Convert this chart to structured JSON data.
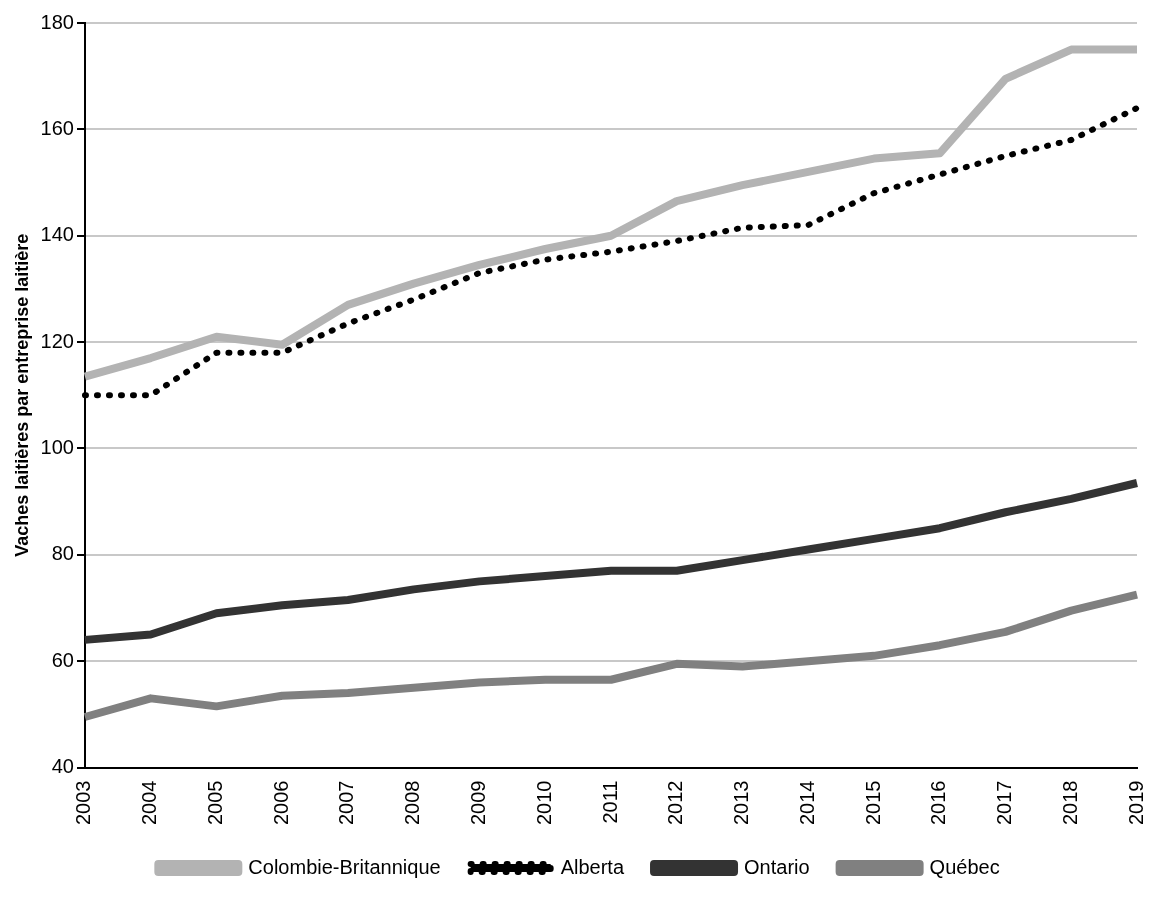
{
  "chart_data": {
    "type": "line",
    "ylabel": "Vaches laitières par entreprise laitière",
    "categories": [
      "2003",
      "2004",
      "2005",
      "2006",
      "2007",
      "2008",
      "2009",
      "2010",
      "2011",
      "2012",
      "2013",
      "2014",
      "2015",
      "2016",
      "2017",
      "2018",
      "2019"
    ],
    "series": [
      {
        "name": "Colombie-Britannique",
        "color": "#b3b3b3",
        "line_style": "solid",
        "values": [
          113.5,
          117,
          121,
          119.5,
          127,
          131,
          134.5,
          137.5,
          140,
          146.5,
          149.5,
          152,
          154.5,
          155.5,
          169.5,
          175,
          175
        ]
      },
      {
        "name": "Alberta",
        "color": "#000000",
        "line_style": "dotted",
        "values": [
          110,
          110,
          118,
          118,
          123.5,
          128,
          133,
          135.5,
          137,
          139,
          141.5,
          142,
          148,
          151.5,
          155,
          158,
          164
        ]
      },
      {
        "name": "Ontario",
        "color": "#333333",
        "line_style": "solid",
        "values": [
          64,
          65,
          69,
          70.5,
          71.5,
          73.5,
          75,
          76,
          77,
          77,
          79,
          81,
          83,
          85,
          88,
          90.5,
          93.5
        ]
      },
      {
        "name": "Québec",
        "color": "#808080",
        "line_style": "solid",
        "values": [
          49.5,
          53,
          51.5,
          53.5,
          54,
          55,
          56,
          56.5,
          56.5,
          59.5,
          59,
          60,
          61,
          63,
          65.5,
          69.5,
          72.5
        ]
      }
    ],
    "ylim": [
      40,
      180
    ],
    "yticks": [
      40,
      60,
      80,
      100,
      120,
      140,
      160,
      180
    ],
    "grid": "y",
    "legend": "bottom",
    "marker": "none"
  }
}
